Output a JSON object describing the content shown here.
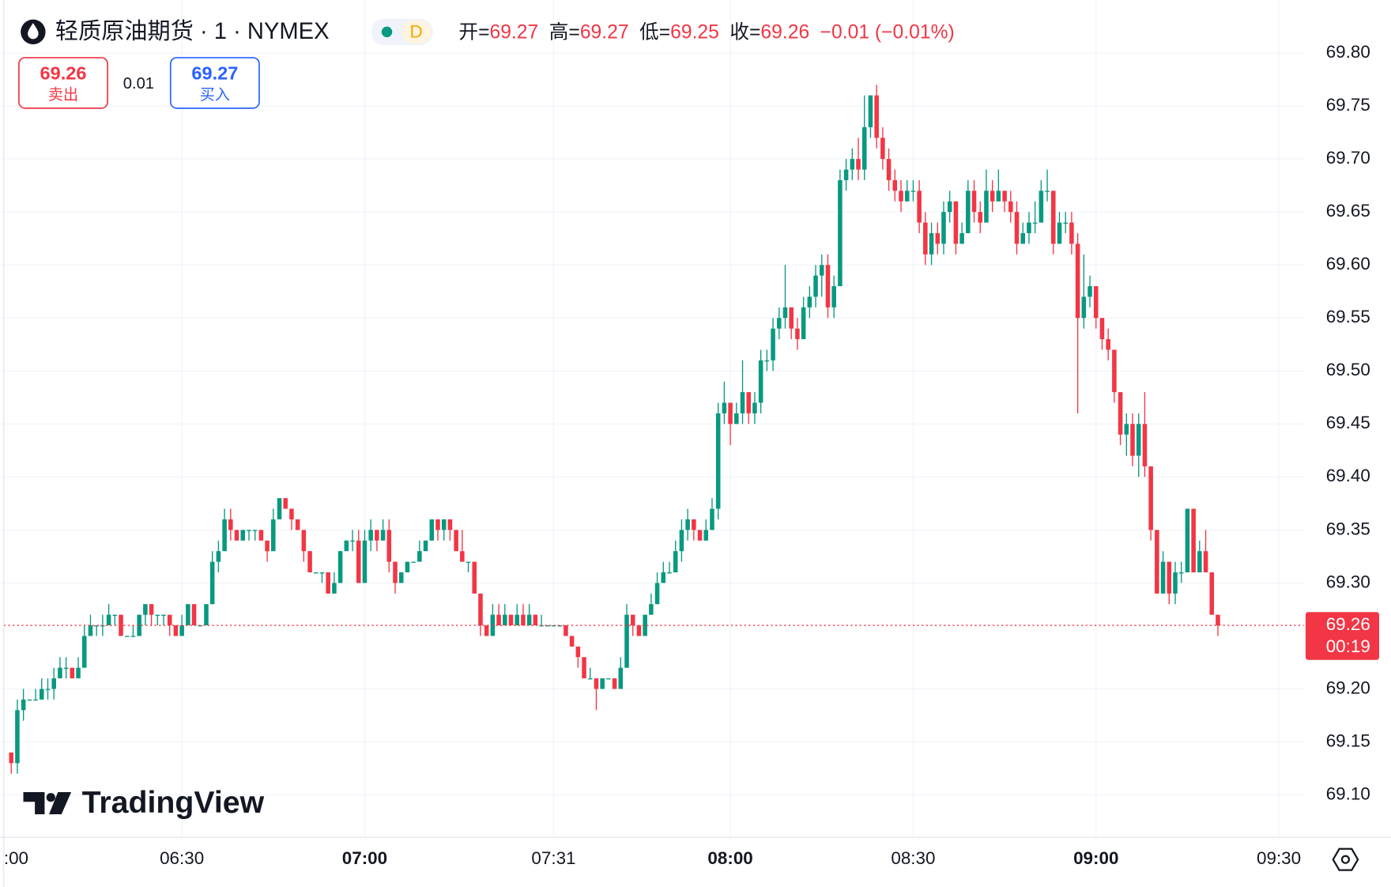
{
  "chart_data": {
    "type": "candlestick",
    "legend": {
      "symbol": "轻质原油期货 · 1 · NYMEX",
      "interval_badge": "D",
      "open_label": "开=",
      "open": 69.27,
      "high_label": "高=",
      "high": 69.27,
      "low_label": "低=",
      "low": 69.25,
      "close_label": "收=",
      "close": 69.26,
      "change": "−0.01 (−0.01%)"
    },
    "trade": {
      "sell_price": 69.26,
      "sell_label": "卖出",
      "spread": 0.01,
      "buy_price": 69.27,
      "buy_label": "买入"
    },
    "last_price": 69.26,
    "countdown": "00:19",
    "brand": "TradingView",
    "up_color": "#089981",
    "down_color": "#f23645",
    "grid": true,
    "xlim": [
      -1.8,
      212.1
    ],
    "xticks": [
      {
        "value": -2,
        "label": ":00"
      },
      {
        "value": 28,
        "label": "06:30"
      },
      {
        "value": 58,
        "label": "07:00"
      },
      {
        "value": 89,
        "label": "07:31"
      },
      {
        "value": 118,
        "label": "08:00"
      },
      {
        "value": 148,
        "label": "08:30"
      },
      {
        "value": 178,
        "label": "09:00"
      },
      {
        "value": 208,
        "label": "09:30"
      }
    ],
    "ylim": [
      69.06,
      69.85
    ],
    "yticks": [
      {
        "value": 69.8,
        "label": "69.80"
      },
      69.75,
      {
        "value": 69.7,
        "label": "69.70"
      },
      69.65,
      {
        "value": 69.6,
        "label": "69.60"
      },
      69.55,
      {
        "value": 69.5,
        "label": "69.50"
      },
      69.45,
      {
        "value": 69.4,
        "label": "69.40"
      },
      69.35,
      {
        "value": 69.3,
        "label": "69.30"
      },
      {
        "value": 69.2,
        "label": "69.20"
      },
      69.15,
      {
        "value": 69.1,
        "label": "69.10"
      }
    ],
    "candles": [
      [
        69.14,
        69.14,
        69.12,
        69.13
      ],
      [
        69.13,
        69.19,
        69.12,
        69.18
      ],
      [
        69.18,
        69.2,
        69.17,
        69.19
      ],
      [
        69.19,
        69.19,
        69.19,
        69.19
      ],
      [
        69.19,
        69.2,
        69.19,
        69.19
      ],
      [
        69.19,
        69.21,
        69.19,
        69.2
      ],
      [
        69.2,
        69.21,
        69.19,
        69.2
      ],
      [
        69.2,
        69.22,
        69.19,
        69.21
      ],
      [
        69.21,
        69.23,
        69.21,
        69.22
      ],
      [
        69.22,
        69.23,
        69.21,
        69.22
      ],
      [
        69.22,
        69.22,
        69.21,
        69.21
      ],
      [
        69.21,
        69.23,
        69.21,
        69.22
      ],
      [
        69.22,
        69.26,
        69.22,
        69.25
      ],
      [
        69.25,
        69.27,
        69.25,
        69.26
      ],
      [
        69.26,
        69.26,
        69.25,
        69.26
      ],
      [
        69.26,
        69.27,
        69.25,
        69.26
      ],
      [
        69.26,
        69.28,
        69.26,
        69.27
      ],
      [
        69.27,
        69.27,
        69.26,
        69.27
      ],
      [
        69.27,
        69.27,
        69.25,
        69.25
      ],
      [
        69.25,
        69.25,
        69.25,
        69.25
      ],
      [
        69.25,
        69.26,
        69.25,
        69.25
      ],
      [
        69.25,
        69.27,
        69.25,
        69.27
      ],
      [
        69.27,
        69.28,
        69.26,
        69.28
      ],
      [
        69.28,
        69.28,
        69.26,
        69.27
      ],
      [
        69.27,
        69.27,
        69.26,
        69.27
      ],
      [
        69.27,
        69.27,
        69.26,
        69.27
      ],
      [
        69.27,
        69.27,
        69.25,
        69.26
      ],
      [
        69.26,
        69.26,
        69.25,
        69.25
      ],
      [
        69.25,
        69.27,
        69.25,
        69.26
      ],
      [
        69.26,
        69.28,
        69.26,
        69.28
      ],
      [
        69.28,
        69.28,
        69.26,
        69.26
      ],
      [
        69.26,
        69.26,
        69.26,
        69.26
      ],
      [
        69.26,
        69.28,
        69.26,
        69.28
      ],
      [
        69.28,
        69.33,
        69.28,
        69.32
      ],
      [
        69.32,
        69.34,
        69.31,
        69.33
      ],
      [
        69.33,
        69.37,
        69.33,
        69.36
      ],
      [
        69.36,
        69.37,
        69.34,
        69.35
      ],
      [
        69.35,
        69.35,
        69.34,
        69.34
      ],
      [
        69.34,
        69.35,
        69.34,
        69.35
      ],
      [
        69.35,
        69.35,
        69.34,
        69.35
      ],
      [
        69.35,
        69.35,
        69.34,
        69.35
      ],
      [
        69.35,
        69.35,
        69.34,
        69.34
      ],
      [
        69.34,
        69.34,
        69.32,
        69.33
      ],
      [
        69.33,
        69.37,
        69.33,
        69.36
      ],
      [
        69.36,
        69.38,
        69.36,
        69.38
      ],
      [
        69.38,
        69.38,
        69.37,
        69.37
      ],
      [
        69.37,
        69.37,
        69.35,
        69.36
      ],
      [
        69.36,
        69.36,
        69.35,
        69.35
      ],
      [
        69.35,
        69.35,
        69.32,
        69.33
      ],
      [
        69.33,
        69.33,
        69.31,
        69.31
      ],
      [
        69.31,
        69.31,
        69.31,
        69.31
      ],
      [
        69.31,
        69.31,
        69.3,
        69.31
      ],
      [
        69.31,
        69.31,
        69.29,
        69.29
      ],
      [
        69.29,
        69.31,
        69.29,
        69.3
      ],
      [
        69.3,
        69.33,
        69.3,
        69.33
      ],
      [
        69.33,
        69.34,
        69.33,
        69.34
      ],
      [
        69.34,
        69.35,
        69.33,
        69.34
      ],
      [
        69.34,
        69.35,
        69.3,
        69.3
      ],
      [
        69.3,
        69.35,
        69.3,
        69.34
      ],
      [
        69.34,
        69.36,
        69.33,
        69.35
      ],
      [
        69.35,
        69.35,
        69.33,
        69.34
      ],
      [
        69.34,
        69.36,
        69.34,
        69.35
      ],
      [
        69.35,
        69.36,
        69.31,
        69.32
      ],
      [
        69.32,
        69.32,
        69.29,
        69.3
      ],
      [
        69.3,
        69.31,
        69.3,
        69.31
      ],
      [
        69.31,
        69.32,
        69.31,
        69.32
      ],
      [
        69.32,
        69.32,
        69.32,
        69.32
      ],
      [
        69.32,
        69.34,
        69.32,
        69.33
      ],
      [
        69.33,
        69.34,
        69.33,
        69.34
      ],
      [
        69.34,
        69.36,
        69.34,
        69.36
      ],
      [
        69.36,
        69.36,
        69.34,
        69.35
      ],
      [
        69.35,
        69.36,
        69.34,
        69.36
      ],
      [
        69.36,
        69.36,
        69.34,
        69.35
      ],
      [
        69.35,
        69.35,
        69.33,
        69.33
      ],
      [
        69.33,
        69.35,
        69.32,
        69.32
      ],
      [
        69.32,
        69.32,
        69.31,
        69.32
      ],
      [
        69.32,
        69.32,
        69.29,
        69.29
      ],
      [
        69.29,
        69.29,
        69.25,
        69.26
      ],
      [
        69.26,
        69.26,
        69.25,
        69.25
      ],
      [
        69.25,
        69.28,
        69.25,
        69.27
      ],
      [
        69.27,
        69.28,
        69.26,
        69.26
      ],
      [
        69.26,
        69.28,
        69.26,
        69.27
      ],
      [
        69.27,
        69.27,
        69.26,
        69.26
      ],
      [
        69.26,
        69.28,
        69.26,
        69.27
      ],
      [
        69.27,
        69.28,
        69.26,
        69.26
      ],
      [
        69.26,
        69.28,
        69.26,
        69.27
      ],
      [
        69.27,
        69.27,
        69.26,
        69.26
      ],
      [
        69.26,
        69.27,
        69.26,
        69.26
      ],
      [
        69.26,
        69.26,
        69.26,
        69.26
      ],
      [
        69.26,
        69.26,
        69.26,
        69.26
      ],
      [
        69.26,
        69.26,
        69.26,
        69.26
      ],
      [
        69.26,
        69.26,
        69.25,
        69.25
      ],
      [
        69.25,
        69.25,
        69.24,
        69.24
      ],
      [
        69.24,
        69.24,
        69.22,
        69.23
      ],
      [
        69.23,
        69.23,
        69.21,
        69.21
      ],
      [
        69.21,
        69.22,
        69.21,
        69.21
      ],
      [
        69.21,
        69.21,
        69.18,
        69.2
      ],
      [
        69.2,
        69.21,
        69.2,
        69.21
      ],
      [
        69.21,
        69.21,
        69.21,
        69.21
      ],
      [
        69.21,
        69.21,
        69.2,
        69.2
      ],
      [
        69.2,
        69.23,
        69.2,
        69.22
      ],
      [
        69.22,
        69.28,
        69.22,
        69.27
      ],
      [
        69.27,
        69.27,
        69.25,
        69.26
      ],
      [
        69.26,
        69.26,
        69.25,
        69.25
      ],
      [
        69.25,
        69.27,
        69.25,
        69.27
      ],
      [
        69.27,
        69.29,
        69.27,
        69.28
      ],
      [
        69.28,
        69.31,
        69.28,
        69.3
      ],
      [
        69.3,
        69.32,
        69.3,
        69.31
      ],
      [
        69.31,
        69.32,
        69.31,
        69.31
      ],
      [
        69.31,
        69.34,
        69.31,
        69.33
      ],
      [
        69.33,
        69.36,
        69.32,
        69.35
      ],
      [
        69.35,
        69.37,
        69.34,
        69.36
      ],
      [
        69.36,
        69.36,
        69.34,
        69.35
      ],
      [
        69.35,
        69.35,
        69.34,
        69.34
      ],
      [
        69.34,
        69.36,
        69.34,
        69.35
      ],
      [
        69.35,
        69.38,
        69.35,
        69.37
      ],
      [
        69.37,
        69.47,
        69.36,
        69.46
      ],
      [
        69.46,
        69.49,
        69.45,
        69.47
      ],
      [
        69.47,
        69.47,
        69.43,
        69.45
      ],
      [
        69.45,
        69.47,
        69.45,
        69.46
      ],
      [
        69.46,
        69.51,
        69.45,
        69.48
      ],
      [
        69.48,
        69.48,
        69.45,
        69.46
      ],
      [
        69.46,
        69.48,
        69.45,
        69.47
      ],
      [
        69.47,
        69.52,
        69.46,
        69.51
      ],
      [
        69.51,
        69.52,
        69.5,
        69.51
      ],
      [
        69.51,
        69.55,
        69.5,
        69.54
      ],
      [
        69.54,
        69.56,
        69.53,
        69.55
      ],
      [
        69.55,
        69.6,
        69.54,
        69.56
      ],
      [
        69.56,
        69.56,
        69.53,
        69.54
      ],
      [
        69.54,
        69.55,
        69.52,
        69.53
      ],
      [
        69.53,
        69.57,
        69.53,
        69.56
      ],
      [
        69.56,
        69.58,
        69.55,
        69.57
      ],
      [
        69.57,
        69.6,
        69.56,
        69.59
      ],
      [
        69.59,
        69.61,
        69.57,
        69.6
      ],
      [
        69.6,
        69.61,
        69.55,
        69.56
      ],
      [
        69.56,
        69.59,
        69.55,
        69.58
      ],
      [
        69.58,
        69.69,
        69.58,
        69.68
      ],
      [
        69.68,
        69.7,
        69.67,
        69.69
      ],
      [
        69.69,
        69.71,
        69.68,
        69.7
      ],
      [
        69.7,
        69.72,
        69.68,
        69.69
      ],
      [
        69.69,
        69.76,
        69.68,
        69.73
      ],
      [
        69.73,
        69.76,
        69.72,
        69.76
      ],
      [
        69.76,
        69.77,
        69.71,
        69.72
      ],
      [
        69.72,
        69.73,
        69.69,
        69.7
      ],
      [
        69.7,
        69.71,
        69.67,
        69.68
      ],
      [
        69.68,
        69.69,
        69.66,
        69.67
      ],
      [
        69.67,
        69.68,
        69.65,
        69.66
      ],
      [
        69.66,
        69.68,
        69.66,
        69.67
      ],
      [
        69.67,
        69.68,
        69.66,
        69.67
      ],
      [
        69.67,
        69.68,
        69.63,
        69.64
      ],
      [
        69.64,
        69.65,
        69.6,
        69.61
      ],
      [
        69.61,
        69.64,
        69.6,
        69.63
      ],
      [
        69.63,
        69.64,
        69.61,
        69.62
      ],
      [
        69.62,
        69.66,
        69.61,
        69.65
      ],
      [
        69.65,
        69.67,
        69.64,
        69.66
      ],
      [
        69.66,
        69.66,
        69.61,
        69.62
      ],
      [
        69.62,
        69.64,
        69.62,
        69.63
      ],
      [
        69.63,
        69.68,
        69.63,
        69.67
      ],
      [
        69.67,
        69.68,
        69.64,
        69.65
      ],
      [
        69.65,
        69.66,
        69.63,
        69.64
      ],
      [
        69.64,
        69.69,
        69.64,
        69.67
      ],
      [
        69.67,
        69.68,
        69.65,
        69.66
      ],
      [
        69.66,
        69.69,
        69.66,
        69.67
      ],
      [
        69.67,
        69.67,
        69.65,
        69.66
      ],
      [
        69.66,
        69.67,
        69.64,
        69.65
      ],
      [
        69.65,
        69.66,
        69.61,
        69.62
      ],
      [
        69.62,
        69.64,
        69.62,
        69.63
      ],
      [
        69.63,
        69.65,
        69.62,
        69.64
      ],
      [
        69.64,
        69.66,
        69.63,
        69.64
      ],
      [
        69.64,
        69.68,
        69.64,
        69.67
      ],
      [
        69.67,
        69.69,
        69.66,
        69.67
      ],
      [
        69.67,
        69.67,
        69.61,
        69.62
      ],
      [
        69.62,
        69.65,
        69.62,
        69.64
      ],
      [
        69.64,
        69.65,
        69.63,
        69.64
      ],
      [
        69.64,
        69.65,
        69.61,
        69.62
      ],
      [
        69.62,
        69.63,
        69.46,
        69.55
      ],
      [
        69.55,
        69.61,
        69.54,
        69.57
      ],
      [
        69.57,
        69.59,
        69.56,
        69.58
      ],
      [
        69.58,
        69.58,
        69.54,
        69.55
      ],
      [
        69.55,
        69.55,
        69.52,
        69.53
      ],
      [
        69.53,
        69.54,
        69.51,
        69.52
      ],
      [
        69.52,
        69.52,
        69.47,
        69.48
      ],
      [
        69.48,
        69.48,
        69.43,
        69.44
      ],
      [
        69.44,
        69.46,
        69.42,
        69.45
      ],
      [
        69.45,
        69.46,
        69.41,
        69.42
      ],
      [
        69.42,
        69.46,
        69.4,
        69.45
      ],
      [
        69.45,
        69.48,
        69.4,
        69.41
      ],
      [
        69.41,
        69.41,
        69.34,
        69.35
      ],
      [
        69.35,
        69.35,
        69.29,
        69.29
      ],
      [
        69.29,
        69.33,
        69.29,
        69.32
      ],
      [
        69.32,
        69.32,
        69.28,
        69.29
      ],
      [
        69.29,
        69.32,
        69.28,
        69.31
      ],
      [
        69.31,
        69.32,
        69.3,
        69.31
      ],
      [
        69.31,
        69.37,
        69.31,
        69.37
      ],
      [
        69.37,
        69.37,
        69.31,
        69.31
      ],
      [
        69.31,
        69.34,
        69.31,
        69.33
      ],
      [
        69.33,
        69.35,
        69.31,
        69.31
      ],
      [
        69.31,
        69.31,
        69.27,
        69.27
      ],
      [
        69.27,
        69.27,
        69.25,
        69.26
      ]
    ]
  }
}
